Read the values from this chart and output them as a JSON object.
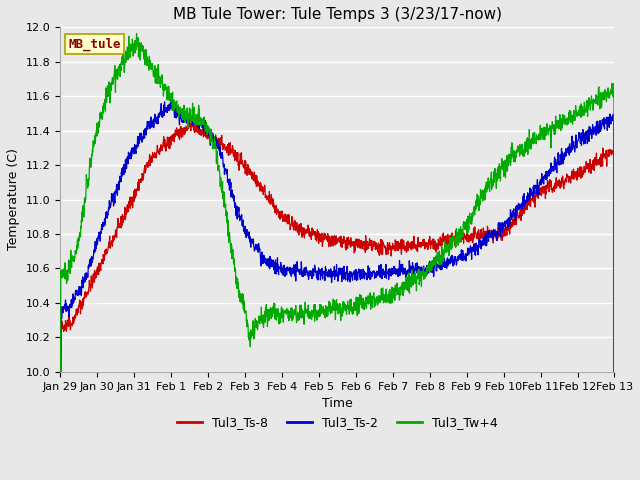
{
  "title": "MB Tule Tower: Tule Temps 3 (3/23/17-now)",
  "ylabel": "Temperature (C)",
  "xlabel": "Time",
  "ylim": [
    10.0,
    12.0
  ],
  "yticks": [
    10.0,
    10.2,
    10.4,
    10.6,
    10.8,
    11.0,
    11.2,
    11.4,
    11.6,
    11.8,
    12.0
  ],
  "xtick_labels": [
    "Jan 29",
    "Jan 30",
    "Jan 31",
    "Feb 1",
    "Feb 2",
    "Feb 3",
    "Feb 4",
    "Feb 5",
    "Feb 6",
    "Feb 7",
    "Feb 8",
    "Feb 9",
    "Feb 10",
    "Feb 11",
    "Feb 12",
    "Feb 13"
  ],
  "legend_labels": [
    "Tul3_Ts-8",
    "Tul3_Ts-2",
    "Tul3_Tw+4"
  ],
  "line_colors": [
    "#cc0000",
    "#0000cc",
    "#00aa00"
  ],
  "bg_color": "#e8e8e8",
  "watermark_text": "MB_tule",
  "watermark_bg": "#ffffcc",
  "watermark_border": "#aaa000",
  "title_fontsize": 11,
  "axis_fontsize": 9,
  "tick_fontsize": 8
}
